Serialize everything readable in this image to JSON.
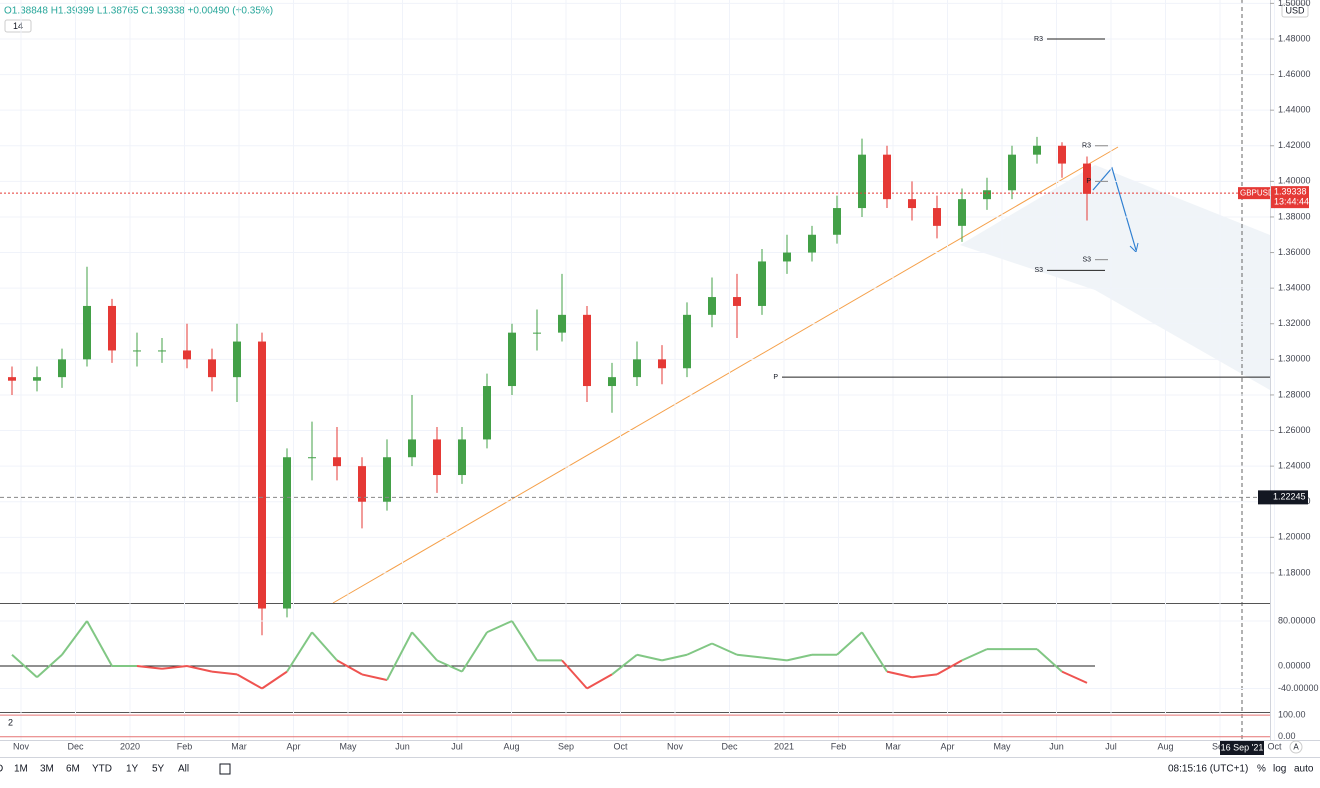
{
  "header": {
    "ohlc": "O1.38848 H1.39399 L1.38765 C1.39338 +0.00490 (+0.35%)",
    "indicator_length": "14",
    "currency": "USD"
  },
  "chart_data": {
    "type": "candlestick",
    "open": [
      1.29,
      1.288,
      1.29,
      1.3,
      1.33,
      1.305,
      1.305,
      1.305,
      1.3,
      1.29,
      1.31,
      1.16,
      1.245,
      1.245,
      1.24,
      1.22,
      1.245,
      1.255,
      1.235,
      1.255,
      1.285,
      1.315,
      1.315,
      1.325,
      1.285,
      1.29,
      1.3,
      1.295,
      1.325,
      1.335,
      1.33,
      1.355,
      1.36,
      1.37,
      1.385,
      1.415,
      1.39,
      1.385,
      1.375,
      1.39,
      1.395,
      1.415,
      1.42,
      1.41
    ],
    "high": [
      1.296,
      1.296,
      1.306,
      1.352,
      1.334,
      1.315,
      1.312,
      1.32,
      1.306,
      1.32,
      1.315,
      1.25,
      1.265,
      1.262,
      1.245,
      1.255,
      1.28,
      1.262,
      1.262,
      1.292,
      1.32,
      1.328,
      1.348,
      1.33,
      1.298,
      1.31,
      1.308,
      1.332,
      1.346,
      1.348,
      1.362,
      1.37,
      1.375,
      1.392,
      1.424,
      1.42,
      1.4,
      1.392,
      1.396,
      1.402,
      1.42,
      1.425,
      1.422,
      1.414
    ],
    "low": [
      1.28,
      1.282,
      1.284,
      1.296,
      1.298,
      1.296,
      1.298,
      1.295,
      1.282,
      1.276,
      1.145,
      1.155,
      1.232,
      1.232,
      1.205,
      1.215,
      1.24,
      1.225,
      1.23,
      1.25,
      1.28,
      1.305,
      1.31,
      1.276,
      1.27,
      1.285,
      1.286,
      1.29,
      1.318,
      1.312,
      1.325,
      1.348,
      1.355,
      1.365,
      1.38,
      1.385,
      1.378,
      1.368,
      1.366,
      1.384,
      1.39,
      1.41,
      1.402,
      1.378
    ],
    "close": [
      1.288,
      1.29,
      1.3,
      1.33,
      1.305,
      1.305,
      1.305,
      1.3,
      1.29,
      1.31,
      1.16,
      1.245,
      1.245,
      1.24,
      1.22,
      1.245,
      1.255,
      1.235,
      1.255,
      1.285,
      1.315,
      1.315,
      1.325,
      1.285,
      1.29,
      1.3,
      1.295,
      1.325,
      1.335,
      1.33,
      1.355,
      1.36,
      1.37,
      1.385,
      1.415,
      1.39,
      1.385,
      1.375,
      1.39,
      1.395,
      1.415,
      1.42,
      1.41,
      1.393
    ],
    "up_color": "#43a047",
    "down_color": "#e53935",
    "ylim": [
      1.1631,
      1.5019
    ],
    "yticks": [
      {
        "value": 1.5,
        "label": "1.50000"
      },
      {
        "value": 1.48,
        "label": "1.48000"
      },
      {
        "value": 1.46,
        "label": "1.46000"
      },
      {
        "value": 1.44,
        "label": "1.44000"
      },
      {
        "value": 1.42,
        "label": "1.42000"
      },
      {
        "value": 1.4,
        "label": "1.40000"
      },
      {
        "value": 1.38,
        "label": "1.38000"
      },
      {
        "value": 1.36,
        "label": "1.36000"
      },
      {
        "value": 1.34,
        "label": "1.34000"
      },
      {
        "value": 1.32,
        "label": "1.32000"
      },
      {
        "value": 1.3,
        "label": "1.30000"
      },
      {
        "value": 1.28,
        "label": "1.28000"
      },
      {
        "value": 1.26,
        "label": "1.26000"
      },
      {
        "value": 1.24,
        "label": "1.24000"
      },
      {
        "value": 1.22,
        "label": "1.22000"
      },
      {
        "value": 1.2,
        "label": "1.20000"
      },
      {
        "value": 1.18,
        "label": "1.18000"
      }
    ],
    "grid": true,
    "time_labels": [
      "Nov",
      "Dec",
      "2020",
      "Feb",
      "Mar",
      "Apr",
      "May",
      "Jun",
      "Jul",
      "Aug",
      "Sep",
      "Oct",
      "Nov",
      "Dec",
      "2021",
      "Feb",
      "Mar",
      "Apr",
      "May",
      "Jun",
      "Jul",
      "Aug",
      "Sep",
      "Oct"
    ],
    "last_price": {
      "symbol": "GBPUSD",
      "value": 1.39338,
      "label": "1.39338",
      "countdown": "13:44:44"
    },
    "marker_price": {
      "value": 1.22245,
      "label": "1.22245"
    },
    "pivots": [
      {
        "label": "R3",
        "value": 1.48
      },
      {
        "label": "P",
        "value": 1.29
      },
      {
        "label": "S3",
        "value": 1.35
      }
    ],
    "pivots_recent": [
      {
        "label": "R3",
        "value": 1.42
      },
      {
        "label": "P",
        "value": 1.4
      },
      {
        "label": "S3",
        "value": 1.356
      }
    ],
    "cursor_date": "16 Sep '21",
    "oscillator": {
      "values": [
        20,
        -20,
        20,
        80,
        0,
        0,
        -5,
        0,
        -10,
        -15,
        -40,
        -10,
        60,
        10,
        -15,
        -25,
        60,
        10,
        -10,
        60,
        80,
        10,
        10,
        -40,
        -15,
        20,
        10,
        20,
        40,
        20,
        15,
        10,
        20,
        20,
        60,
        -10,
        -20,
        -15,
        10,
        30,
        30,
        30,
        -10,
        -30
      ],
      "up_color": "#81c784",
      "down_color": "#ef5350",
      "ylim": [
        -81.8,
        110.2
      ],
      "yticks": [
        {
          "value": 80,
          "label": "80.00000"
        },
        {
          "value": 0,
          "label": "0.00000"
        },
        {
          "value": -40,
          "label": "-40.00000"
        }
      ]
    },
    "lower_pane": {
      "label": "2",
      "yticks": [
        {
          "value": 100,
          "label": "100.00"
        },
        {
          "value": 0,
          "label": "0.00"
        }
      ],
      "ylim": [
        -15,
        110
      ]
    }
  },
  "toolbar": {
    "ranges": [
      "D",
      "1M",
      "3M",
      "6M",
      "YTD",
      "1Y",
      "5Y",
      "All"
    ],
    "clock": "08:15:16 (UTC+1)",
    "percent": "%",
    "log": "log",
    "auto": "auto",
    "badge": "A"
  }
}
